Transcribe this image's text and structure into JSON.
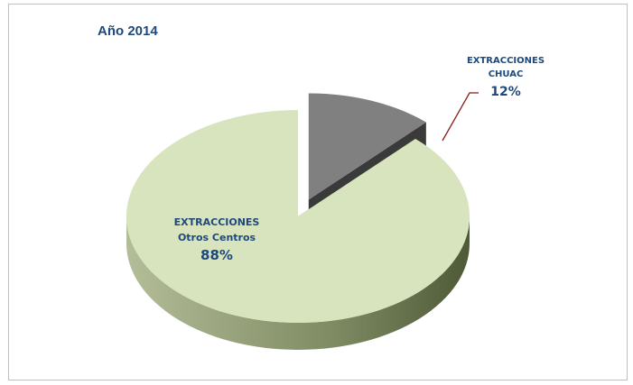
{
  "chart_data": {
    "type": "pie",
    "title": "Año 2014",
    "categories": [
      "EXTRACCIONES CHUAC",
      "EXTRACCIONES Otros Centros"
    ],
    "values": [
      12,
      88
    ],
    "value_labels": [
      "12%",
      "88%"
    ],
    "colors": [
      "#808080",
      "#d7e4bd"
    ]
  }
}
